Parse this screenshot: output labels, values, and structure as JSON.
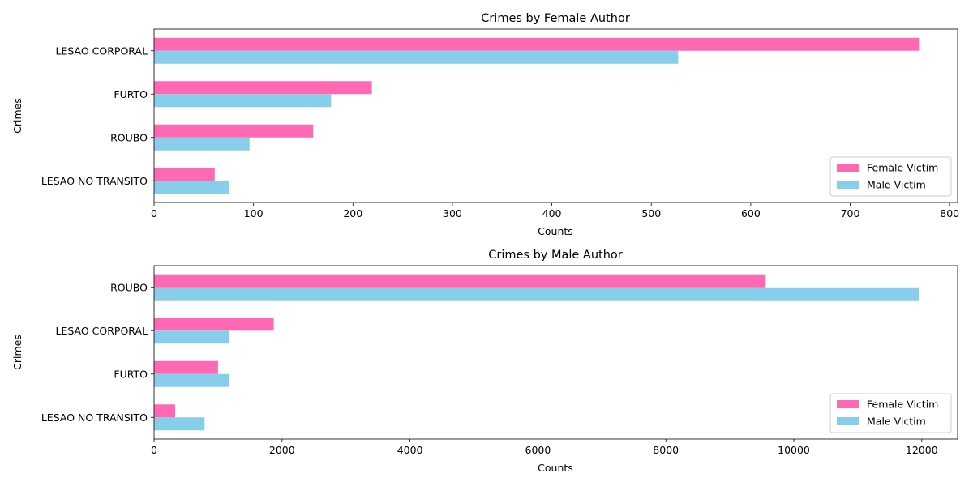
{
  "colors": {
    "female": "#ff69b4",
    "male": "#87ceeb"
  },
  "chart_data": [
    {
      "type": "bar",
      "orientation": "horizontal",
      "title": "Crimes by Female Author",
      "xlabel": "Counts",
      "ylabel": "Crimes",
      "categories": [
        "LESAO CORPORAL",
        "FURTO",
        "ROUBO",
        "LESAO NO TRANSITO"
      ],
      "series": [
        {
          "name": "Female Victim",
          "values": [
            770,
            219,
            160,
            61
          ]
        },
        {
          "name": "Male Victim",
          "values": [
            527,
            178,
            96,
            75
          ]
        }
      ],
      "xlim": [
        0,
        808
      ],
      "xticks": [
        0,
        100,
        200,
        300,
        400,
        500,
        600,
        700,
        800
      ],
      "xtick_labels": [
        "0",
        "100",
        "200",
        "300",
        "400",
        "500",
        "600",
        "700",
        "800"
      ],
      "legend": "bottom-right",
      "grid": false
    },
    {
      "type": "bar",
      "orientation": "horizontal",
      "title": "Crimes by Male Author",
      "xlabel": "Counts",
      "ylabel": "Crimes",
      "categories": [
        "ROUBO",
        "LESAO CORPORAL",
        "FURTO",
        "LESAO NO TRANSITO"
      ],
      "series": [
        {
          "name": "Female Victim",
          "values": [
            9560,
            1870,
            1000,
            330
          ]
        },
        {
          "name": "Male Victim",
          "values": [
            11960,
            1180,
            1180,
            790
          ]
        }
      ],
      "xlim": [
        0,
        12560
      ],
      "xticks": [
        0,
        2000,
        4000,
        6000,
        8000,
        10000,
        12000
      ],
      "xtick_labels": [
        "0",
        "2000",
        "4000",
        "6000",
        "8000",
        "10000",
        "12000"
      ],
      "legend": "bottom-right",
      "grid": false
    }
  ]
}
